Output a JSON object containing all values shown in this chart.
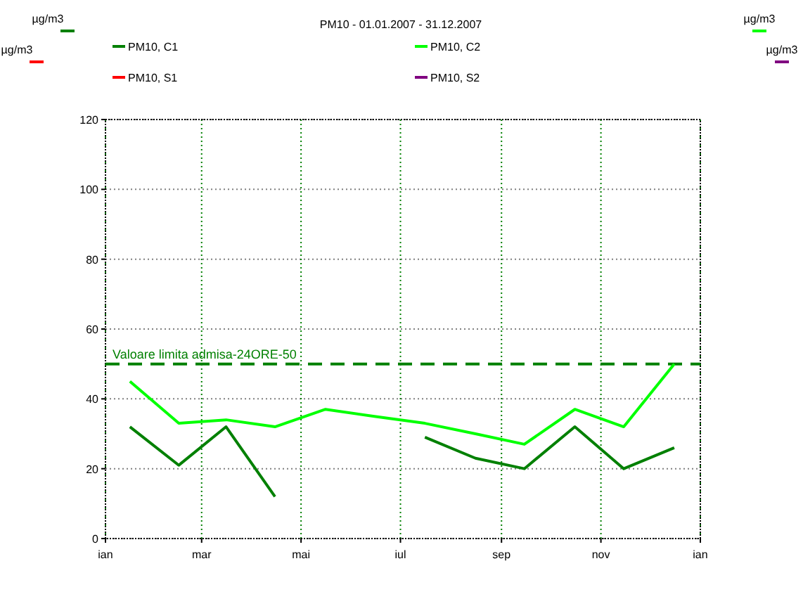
{
  "chart_data": {
    "type": "line",
    "title": "PM10 - 01.01.2007 - 31.12.2007",
    "x": [
      "2007-01-16",
      "2007-02-15",
      "2007-03-16",
      "2007-04-15",
      "2007-05-16",
      "2007-06-15",
      "2007-07-16",
      "2007-08-16",
      "2007-09-15",
      "2007-10-16",
      "2007-11-15",
      "2007-12-16"
    ],
    "series": [
      {
        "name": "PM10, C1",
        "color": "#008000",
        "values": [
          32,
          21,
          32,
          12,
          null,
          null,
          29,
          23,
          20,
          32,
          20,
          26
        ]
      },
      {
        "name": "PM10, S1",
        "color": "#ff0000",
        "values": [
          null,
          null,
          null,
          null,
          null,
          null,
          null,
          null,
          null,
          null,
          null,
          null
        ]
      },
      {
        "name": "PM10, C2",
        "color": "#00ff00",
        "values": [
          45,
          33,
          34,
          32,
          37,
          35,
          33,
          30,
          27,
          37,
          32,
          50
        ]
      },
      {
        "name": "PM10, S2",
        "color": "#800080",
        "values": [
          null,
          null,
          null,
          null,
          null,
          null,
          null,
          null,
          null,
          null,
          null,
          null
        ]
      }
    ],
    "xlim": [
      "2007-01-01",
      "2008-01-01"
    ],
    "xticks": [
      {
        "value": "2007-01-01",
        "label": "ian"
      },
      {
        "value": "2007-03-01",
        "label": "mar"
      },
      {
        "value": "2007-05-01",
        "label": "mai"
      },
      {
        "value": "2007-07-01",
        "label": "iul"
      },
      {
        "value": "2007-09-01",
        "label": "sep"
      },
      {
        "value": "2007-11-01",
        "label": "nov"
      },
      {
        "value": "2008-01-01",
        "label": "ian"
      }
    ],
    "ylim": [
      0,
      120
    ],
    "yticks": [
      0,
      20,
      40,
      60,
      80,
      100,
      120
    ],
    "ref_lines": [
      {
        "axis": "y",
        "value": 50,
        "label": "Valoare limita admisa-24ORE-50",
        "color": "#008000",
        "line_style": "dashed"
      }
    ],
    "annotations": [
      "µg/m3",
      "µg/m3",
      "µg/m3",
      "µg/m3"
    ],
    "grid": true,
    "legend": "top",
    "marker": "none",
    "line_style": "solid"
  }
}
